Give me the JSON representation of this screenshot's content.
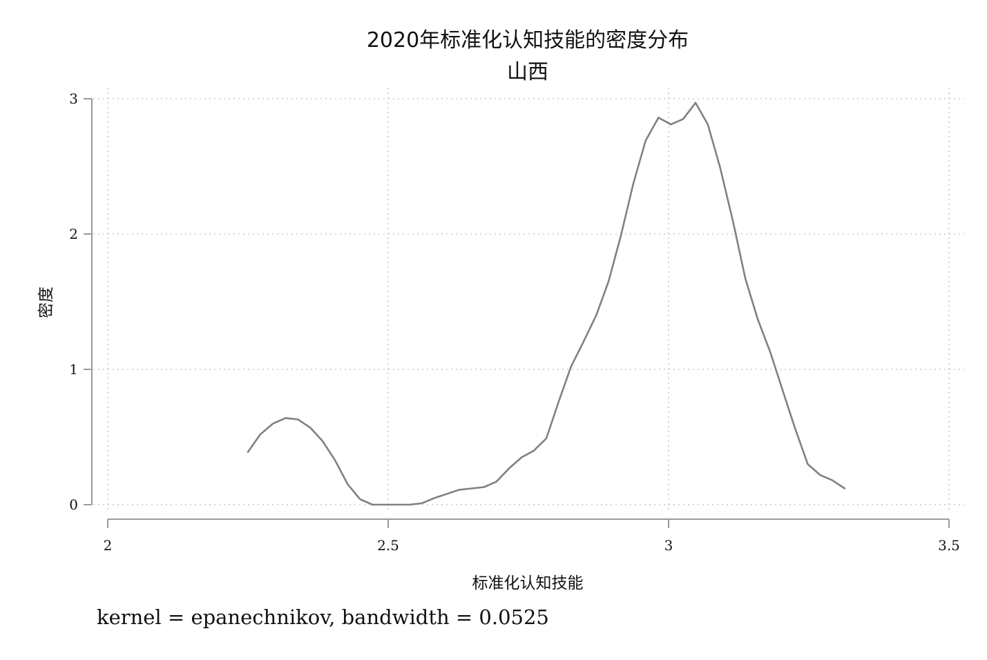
{
  "chart_data": {
    "type": "line",
    "title": "2020年标准化认知技能的密度分布",
    "subtitle": "山西",
    "xlabel": "标准化认知技能",
    "ylabel": "密度",
    "xlim": [
      2,
      3.5
    ],
    "ylim": [
      0,
      3
    ],
    "xticks": [
      "2",
      "2.5",
      "3",
      "3.5"
    ],
    "yticks": [
      "0",
      "1",
      "2",
      "3"
    ],
    "grid": true,
    "note": "kernel = epanechnikov, bandwidth = 0.0525",
    "series": [
      {
        "color": "#808080",
        "x": [
          2.25,
          2.272,
          2.295,
          2.317,
          2.339,
          2.361,
          2.383,
          2.405,
          2.428,
          2.45,
          2.472,
          2.494,
          2.516,
          2.538,
          2.56,
          2.583,
          2.605,
          2.627,
          2.649,
          2.671,
          2.693,
          2.716,
          2.738,
          2.76,
          2.782,
          2.804,
          2.826,
          2.849,
          2.871,
          2.893,
          2.915,
          2.937,
          2.959,
          2.982,
          3.004,
          3.026,
          3.048,
          3.07,
          3.092,
          3.115,
          3.137,
          3.159,
          3.181,
          3.203,
          3.225,
          3.248,
          3.27,
          3.292,
          3.314
        ],
        "y": [
          0.39,
          0.52,
          0.6,
          0.64,
          0.63,
          0.57,
          0.47,
          0.33,
          0.15,
          0.04,
          0.0,
          0.0,
          0.0,
          0.0,
          0.01,
          0.05,
          0.08,
          0.11,
          0.12,
          0.13,
          0.17,
          0.27,
          0.35,
          0.4,
          0.49,
          0.76,
          1.02,
          1.21,
          1.4,
          1.65,
          1.99,
          2.37,
          2.69,
          2.86,
          2.81,
          2.85,
          2.97,
          2.81,
          2.49,
          2.09,
          1.67,
          1.37,
          1.13,
          0.85,
          0.57,
          0.3,
          0.22,
          0.18,
          0.12
        ]
      }
    ]
  },
  "colors": {
    "series": "#808080",
    "grid": "#c8c8c8",
    "axis": "#9a9a9a",
    "text": "#111111",
    "background": "#ffffff"
  }
}
